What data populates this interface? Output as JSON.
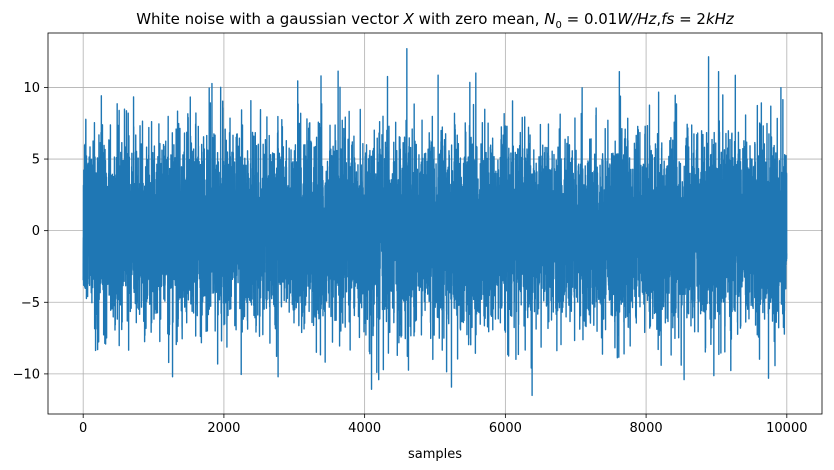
{
  "chart_data": {
    "type": "line",
    "title": "White noise with a gaussian vector X with zero mean, N₀ = 0.01W/Hz, fs = 2kHz",
    "title_parts": {
      "prefix": "White noise with a gaussian vector ",
      "var": "X",
      "mid": " with zero mean, ",
      "n0": "N",
      "n0_sub": "0",
      "n0_rest": " = 0.01",
      "unit": "W/Hz",
      "sep": ",",
      "fs": "fs",
      "fs_rest": " = 2",
      "fs_unit": "kHz"
    },
    "xlabel": "samples",
    "ylabel": "",
    "xlim": [
      -500,
      10500
    ],
    "ylim": [
      -12.8,
      13.8
    ],
    "xticks": [
      0,
      2000,
      4000,
      6000,
      8000,
      10000
    ],
    "yticks": [
      -10,
      -5,
      0,
      5,
      10
    ],
    "xtick_labels": [
      "0",
      "2000",
      "4000",
      "6000",
      "8000",
      "10000"
    ],
    "ytick_labels": [
      "−10",
      "−5",
      "0",
      "5",
      "10"
    ],
    "grid": true,
    "legend": "none",
    "series": [
      {
        "color": "#1f77b4",
        "n_samples": 10000,
        "x_range": [
          0,
          9999
        ],
        "mean": 0,
        "std": 3.2,
        "y_min": -11.5,
        "y_max": 12.7,
        "peaks": [
          {
            "x": 4600,
            "y": 12.7
          },
          {
            "x": 3380,
            "y": 10.8
          },
          {
            "x": 5580,
            "y": 11.0
          },
          {
            "x": 7620,
            "y": 11.1
          },
          {
            "x": 9030,
            "y": 11.1
          },
          {
            "x": 6380,
            "y": -11.5
          },
          {
            "x": 4200,
            "y": -10.4
          },
          {
            "x": 8540,
            "y": -10.4
          },
          {
            "x": 1270,
            "y": -10.2
          },
          {
            "x": 2770,
            "y": -10.2
          },
          {
            "x": 9740,
            "y": -10.3
          }
        ]
      }
    ]
  },
  "colors": {
    "line": "#1f77b4",
    "grid": "#b0b0b0",
    "axes": "#000000"
  }
}
